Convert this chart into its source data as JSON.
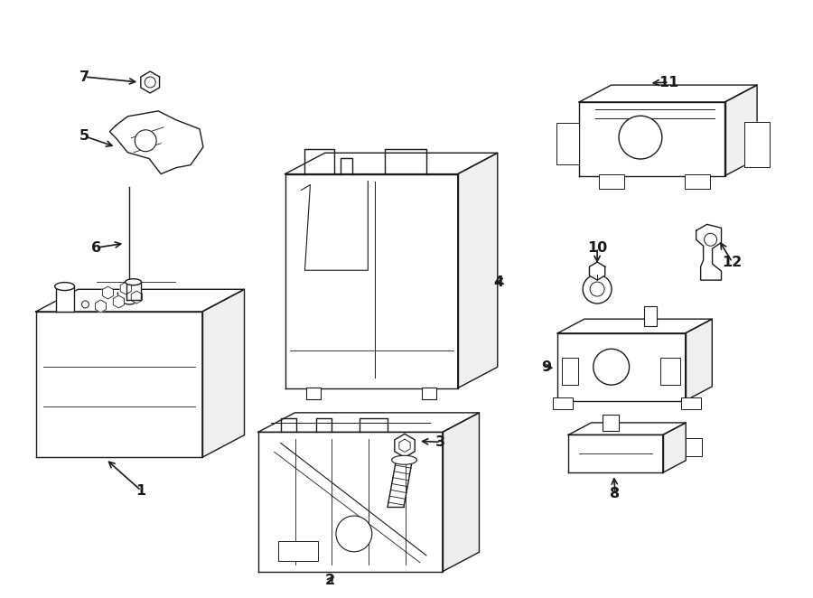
{
  "background_color": "#ffffff",
  "line_color": "#1a1a1a",
  "fig_width": 9.0,
  "fig_height": 6.62,
  "lw": 1.0
}
